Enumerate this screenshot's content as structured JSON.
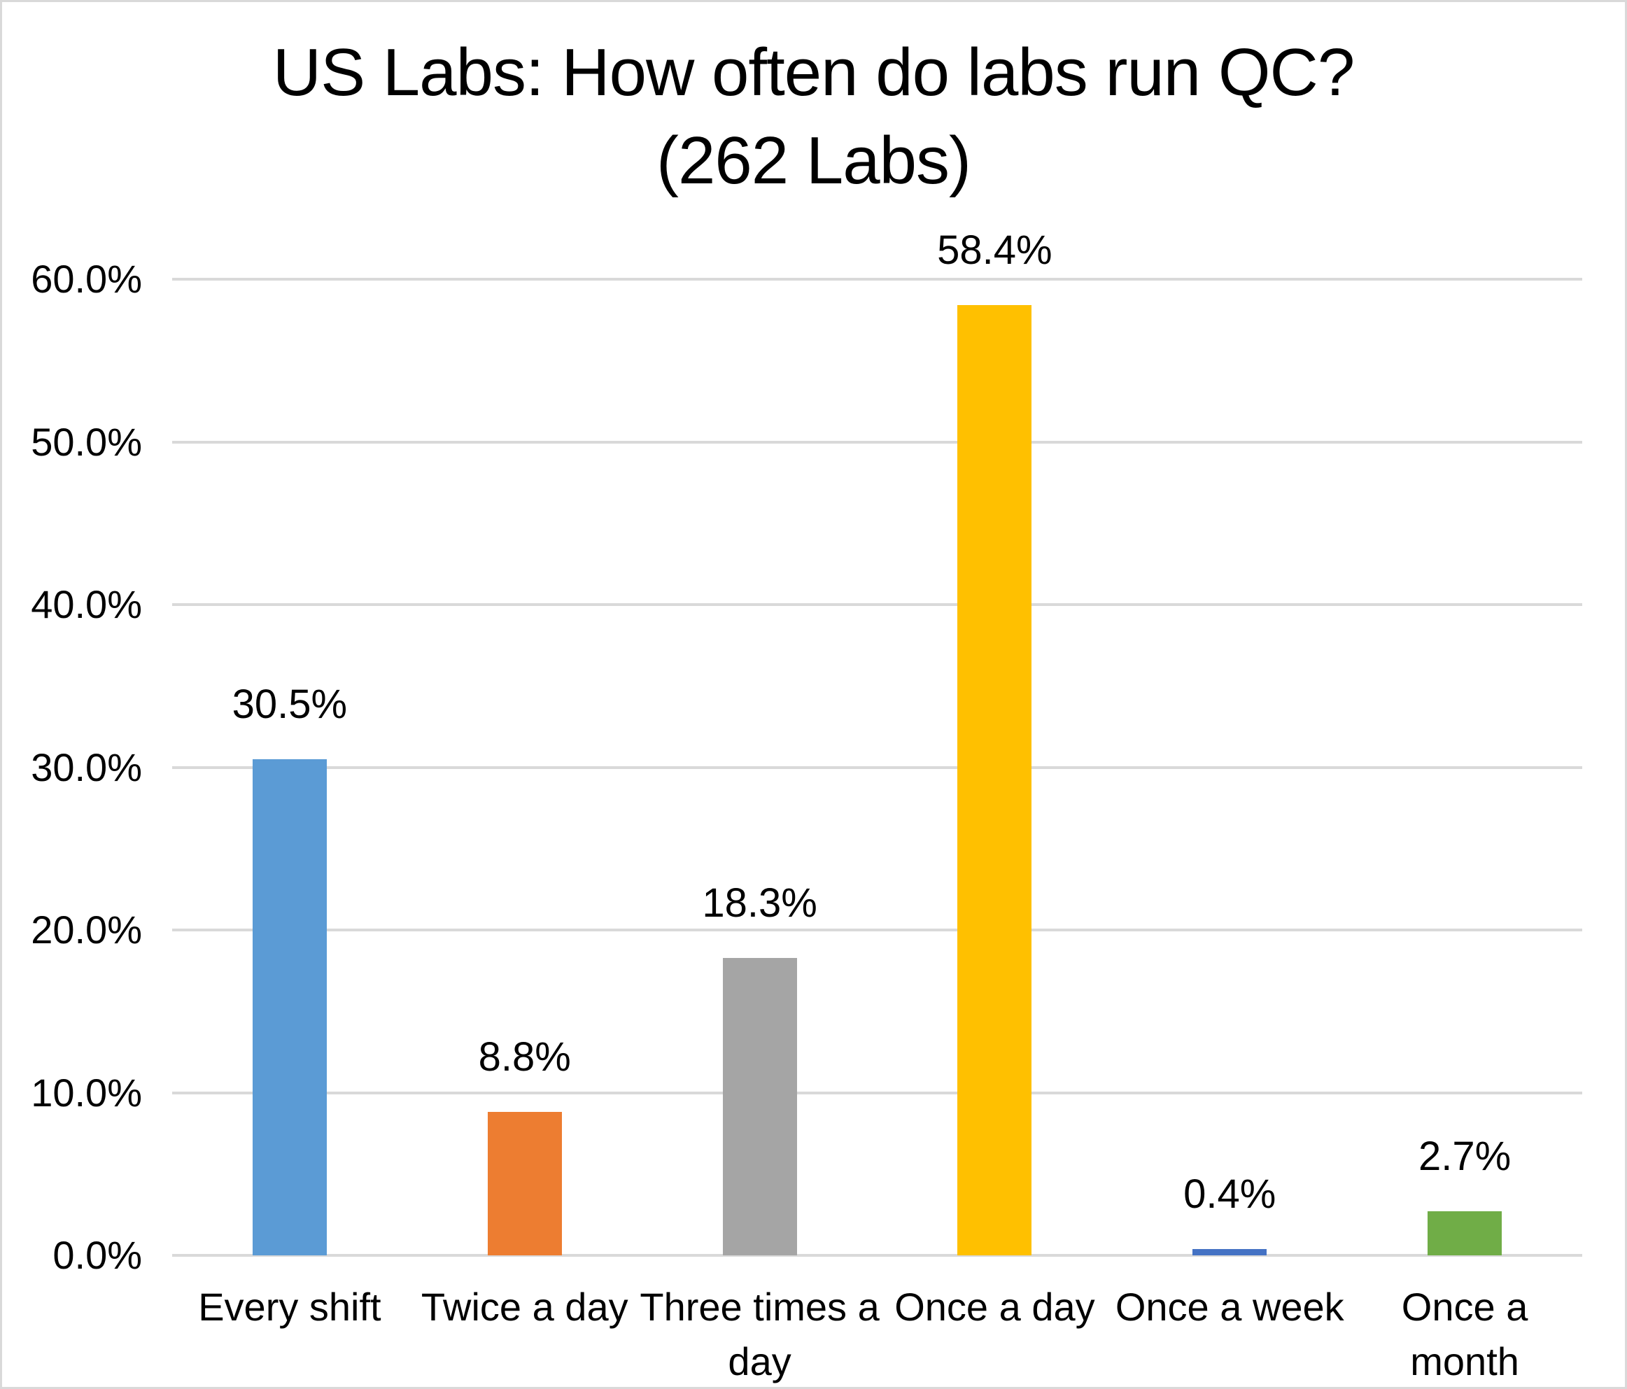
{
  "chart_data": {
    "type": "bar",
    "title": "US Labs: How often do labs run QC? (262 Labs)",
    "title_lines": [
      "US Labs: How often do labs run QC?",
      "(262 Labs)"
    ],
    "categories": [
      "Every shift",
      "Twice a day",
      "Three times a\nday",
      "Once a day",
      "Once a week",
      "Once a\nmonth"
    ],
    "values": [
      30.5,
      8.8,
      18.3,
      58.4,
      0.4,
      2.7
    ],
    "data_labels": [
      "30.5%",
      "8.8%",
      "18.3%",
      "58.4%",
      "0.4%",
      "2.7%"
    ],
    "bar_colors": [
      "#5B9BD5",
      "#ED7D31",
      "#A5A5A5",
      "#FFC000",
      "#4472C4",
      "#70AD47"
    ],
    "xlabel": "",
    "ylabel": "",
    "ylim": [
      0,
      60
    ],
    "ytick_values": [
      0,
      10,
      20,
      30,
      40,
      50,
      60
    ],
    "ytick_labels": [
      "0.0%",
      "10.0%",
      "20.0%",
      "30.0%",
      "40.0%",
      "50.0%",
      "60.0%"
    ],
    "grid": true,
    "legend": false,
    "gridline_color": "#D9D9D9",
    "axis_line_color": "#D9D9D9",
    "text_color": "#000000",
    "background_color": "#FFFFFF",
    "border_color": "#D9D9D9"
  }
}
